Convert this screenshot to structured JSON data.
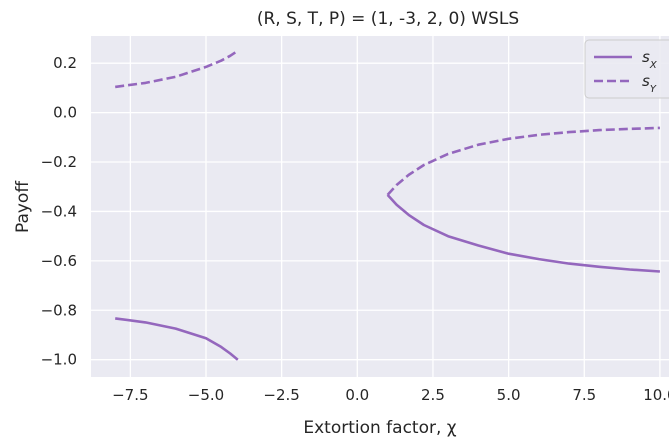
{
  "chart_data": {
    "type": "line",
    "title": "(R, S, T, P) = (1, -3, 2, 0)    WSLS",
    "xlabel": "Extortion factor, χ",
    "ylabel": "Payoff",
    "xlim": [
      -8.8,
      10.3
    ],
    "ylim": [
      -1.07,
      0.31
    ],
    "xticks": [
      -7.5,
      -5.0,
      -2.5,
      0.0,
      2.5,
      5.0,
      7.5,
      10.0
    ],
    "xtick_labels": [
      "−7.5",
      "−5.0",
      "−2.5",
      "0.0",
      "2.5",
      "5.0",
      "7.5",
      "10.0"
    ],
    "yticks": [
      0.2,
      0.0,
      -0.2,
      -0.4,
      -0.6,
      -0.8,
      -1.0
    ],
    "ytick_labels": [
      "0.2",
      "0.0",
      "−0.2",
      "−0.4",
      "−0.6",
      "−0.8",
      "−1.0"
    ],
    "grid": true,
    "legend_position": "top-right",
    "color": "#9467bd",
    "series": [
      {
        "name": "s_X",
        "style": "solid",
        "segments": [
          [
            [
              -8.0,
              -0.833
            ],
            [
              -7.0,
              -0.849
            ],
            [
              -6.0,
              -0.874
            ],
            [
              -5.0,
              -0.913
            ],
            [
              -4.5,
              -0.948
            ],
            [
              -4.2,
              -0.975
            ],
            [
              -3.95,
              -1.0
            ]
          ],
          [
            [
              1.0,
              -0.333
            ],
            [
              1.3,
              -0.373
            ],
            [
              1.7,
              -0.414
            ],
            [
              2.2,
              -0.455
            ],
            [
              3.0,
              -0.5
            ],
            [
              4.0,
              -0.538
            ],
            [
              5.0,
              -0.571
            ],
            [
              6.0,
              -0.593
            ],
            [
              7.0,
              -0.611
            ],
            [
              8.0,
              -0.624
            ],
            [
              9.0,
              -0.635
            ],
            [
              10.0,
              -0.643
            ]
          ]
        ]
      },
      {
        "name": "s_Y",
        "style": "dashed",
        "segments": [
          [
            [
              -8.0,
              0.104
            ],
            [
              -7.0,
              0.12
            ],
            [
              -6.0,
              0.145
            ],
            [
              -5.0,
              0.185
            ],
            [
              -4.5,
              0.21
            ],
            [
              -4.2,
              0.23
            ],
            [
              -3.95,
              0.25
            ]
          ],
          [
            [
              1.0,
              -0.333
            ],
            [
              1.3,
              -0.293
            ],
            [
              1.7,
              -0.252
            ],
            [
              2.2,
              -0.212
            ],
            [
              3.0,
              -0.167
            ],
            [
              4.0,
              -0.13
            ],
            [
              5.0,
              -0.106
            ],
            [
              6.0,
              -0.09
            ],
            [
              7.0,
              -0.079
            ],
            [
              8.0,
              -0.071
            ],
            [
              9.0,
              -0.066
            ],
            [
              10.0,
              -0.062
            ]
          ]
        ]
      }
    ]
  }
}
